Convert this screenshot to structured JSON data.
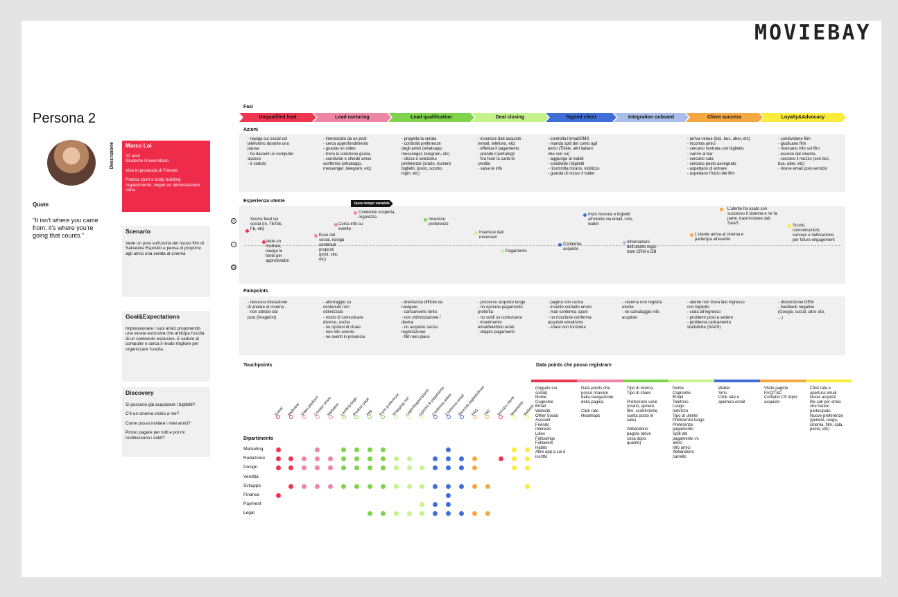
{
  "logo": "MOVIEBAY",
  "persona": {
    "title": "Persona 2",
    "quote_label": "Quote",
    "quote": "“It isn't where you came from; it's where you're going that counts.”",
    "desc_label": "Descrizione",
    "name": "Marco Loi",
    "lines": [
      "22 anni\nStudente Universitario",
      "Vive in provincia di Firenze",
      "Pratica sport e body building regolarmente, segue un alimentazione sana"
    ],
    "scenario_title": "Scenario",
    "scenario": "Vede un post sull'uscita del nuovo film di Salvatore Esposito e pensa di proporre agli amici una serata al cinema",
    "goals_title": "Goal&Expectations",
    "goals": "Impressionare i suoi amici proponendo una serata esclusiva che anticipa l'uscita di un contenuto esclusivo. E seduto al computer e cerca il modo migliore per organizzare l'uscita.",
    "discovery_title": "Discovery",
    "discovery": [
      "Si possono già acquistare i biglietti?",
      "C'è un cinema vicino a me?",
      "Come posso invitare i miei amici?",
      "Posso pagare per tutti e poi mi restituiscono i soldi?"
    ]
  },
  "labels": {
    "fasi": "Fasi",
    "azioni": "Azioni",
    "esperienza": "Esperienza utente",
    "painpoints": "Painpoints",
    "touchpoints": "Touchpoints",
    "dipartimento": "Dipartimento",
    "datapoints": "Data points che posso registrare",
    "lasso": "lasso tempo variabile"
  },
  "phases": [
    {
      "label": "Unqualified lead",
      "color": "#ef3650"
    },
    {
      "label": "Lead nurturing",
      "color": "#ef85a5"
    },
    {
      "label": "Lead qualification",
      "color": "#7ed34a"
    },
    {
      "label": "Deal closing",
      "color": "#c6f28c"
    },
    {
      "label": "Signed client",
      "color": "#3f6ed8"
    },
    {
      "label": "Integration onboard",
      "color": "#a9bde8"
    },
    {
      "label": "Client success",
      "color": "#f5a741"
    },
    {
      "label": "Loyalty&Advocacy",
      "color": "#fbeb3b"
    }
  ],
  "actions": [
    "- naviga sui social col\ntelefonino durante una\npausa\n- ha davanti un computer\nacceso\n- è seduto",
    "- interessato da un post\n- cerca approfondimento\n- guarda un video\n- trova la soluzione giusta\n- condivide e chiede amici\nconferma (whatsapp,\nmessenger, telegram, etc)",
    "- progetta la serata\n- controlla preferenze\ndegli amici (whatsapp,\nmessenger, telegram, etc)\n- clicca e seleziona\npreferenze (orario, numero\nbiglietti, posto, sconto,\nlogin, etc)",
    "- inserisce dati acquisto\n(email, telefono, etc)\n- effettua il pagamento\n- prende il portafogli\n- tira fuori la carta di\ncredito\n- salva le info",
    "- controlla l'email/SMS\n- manda split del conto agli\namici (Tikkie, altri italiani\nche non so)\n- aggiunge al wallet\n- condivide i biglietti\n- ricontrolla l'orario, indirizzo\n- guarda di nuovo il trailer",
    "",
    "- arriva venue (bici, bus, uber, etc)\n- incontra amici\n- cercano l'entrata con biglietto\n- vanno al bar\n- cercano sala\n- cercano posto assegnato\n- aspettano di entrare\n- aspettano l'inizio del film",
    "- condividono film\n- giudicano film\n- ricercano info sul film\n- escono dal cinema\n- cercano il mezzo (con bici,\nbus, uber, etc)\n- riceve email post-servizio"
  ],
  "experience": [
    {
      "text": "Scorre feed sui\nsocial (In, TikTok,\nFb, etc)",
      "color": "#ef3650"
    },
    {
      "text": "Vede un\nrisultato,\nnaviga la\nfonte per\napprofondire",
      "color": "#ef3650"
    },
    {
      "text": "Esce dal\nsocial, naviga\ncontenuti\nproposti\n(post, site,\netc)",
      "color": "#ef85a5"
    },
    {
      "text": "Cerca info su\nevento",
      "color": "#ef85a5"
    },
    {
      "text": "Condivide scoperta,\norganizza",
      "color": "#ef85a5"
    },
    {
      "text": "Inserisce\npreferenze",
      "color": "#7ed34a"
    },
    {
      "text": "Inserisce dati\nnecesseri",
      "color": "#c6f28c"
    },
    {
      "text": "Pagamento",
      "color": "#c6f28c"
    },
    {
      "text": "Invio ricevuta e biglietti\nall'utente via email, sms,\nwallet",
      "color": "#3f6ed8"
    },
    {
      "text": "Conferma\nacquisto",
      "color": "#3f6ed8"
    },
    {
      "text": "Informazioni\ndell'utente regis-\ntrate CRM e DB",
      "color": "#a9bde8"
    },
    {
      "text": "L'utente arriva al cinema e\npartecipa all'evento",
      "color": "#f5a741"
    },
    {
      "text": "L'utente ha usato con\nsuccesso il sistema e ne fa\nparte, trasmissione dati\nSAAS",
      "color": "#f5a741"
    },
    {
      "text": "Sconti,\ncomunicazioni,\nsurveys e riattivazione\nper futuro engagement",
      "color": "#fbeb3b"
    }
  ],
  "painpoints": [
    "- nessuna interazione\ndi andare al cinema\n- non attirato dal\npost (image/txt)",
    "- atterraggio su\ncontenuto non\nottimizzato\n- modo di comunicare\ndiverso, uscita\n- no opzioni di share\n- non info evento\n- no eventi in provincia",
    "- interfaccia difficile da\nnavigare\n- caricamento lento\n- non ottimizzazione /\ndevice\n- no acquisto senza\nregistrazione\n- film non piace",
    "- processo acquisto lungo\n- no opzione pagamento\npreferita\n- no soldi su conto/carta\n- inserimento\nemail/telefono errati\n- doppio pagamento",
    "- pagina non carica\n- inserito contatto errato\n- mail conferma spam\n- no ricezione conferma\nacquisto email/sms\n- share non funziona",
    "- sistema non registra\nutente\n- no salvataggio info\nacquisto",
    "- utente non trova lato ingresso\ncon biglietto\n- coda all'ingresso\n- problemi posti a sedere\n- problema caricamento\nstatistiche (SAAS)",
    "- disiscrizione DEM\n- feedback negativo\n(Google, social, altro sito,\n...)"
  ],
  "touchpoints": [
    {
      "label": "Social",
      "color": "#ef3650"
    },
    {
      "label": "Webview",
      "color": "#ef3650"
    },
    {
      "label": "Video platform",
      "color": "#ef85a5"
    },
    {
      "label": "Contact share",
      "color": "#ef85a5"
    },
    {
      "label": "Websites",
      "color": "#ef85a5"
    },
    {
      "label": "Landing page",
      "color": "#7ed34a"
    },
    {
      "label": "Product page",
      "color": "#7ed34a"
    },
    {
      "label": "App",
      "color": "#7ed34a"
    },
    {
      "label": "Form preferenze",
      "color": "#7ed34a"
    },
    {
      "label": "Shopping cart",
      "color": "#c6f28c"
    },
    {
      "label": "Login/Registrazione",
      "color": "#c6f28c"
    },
    {
      "label": "Opzioni di pagamento",
      "color": "#c6f28c"
    },
    {
      "label": "Conferma online",
      "color": "#3f6ed8"
    },
    {
      "label": "Conferma email",
      "color": "#3f6ed8"
    },
    {
      "label": "Ricevuta biglietto/invio",
      "color": "#3f6ed8"
    },
    {
      "label": "FAQ",
      "color": "#f5a741"
    },
    {
      "label": "T&C",
      "color": "#f5a741"
    },
    {
      "label": "Servizio clienti",
      "color": "#ef3650"
    },
    {
      "label": "Newsletter",
      "color": "#fbeb3b"
    },
    {
      "label": "Website",
      "color": "#fbeb3b"
    }
  ],
  "departments": [
    {
      "name": "Marketing",
      "dots": [
        0,
        3,
        5,
        6,
        7,
        8,
        13,
        18,
        19
      ]
    },
    {
      "name": "Redazione",
      "dots": [
        0,
        1,
        2,
        3,
        4,
        5,
        6,
        7,
        8,
        9,
        10,
        12,
        13,
        14,
        15,
        17,
        18,
        19
      ]
    },
    {
      "name": "Design",
      "dots": [
        0,
        1,
        2,
        3,
        4,
        5,
        6,
        7,
        8,
        9,
        10,
        11,
        12,
        13,
        14,
        15,
        18,
        19
      ]
    },
    {
      "name": "Vendita",
      "dots": []
    },
    {
      "name": "Sviluppo",
      "dots": [
        1,
        2,
        3,
        4,
        5,
        6,
        7,
        8,
        9,
        10,
        11,
        12,
        13,
        14,
        15,
        16,
        19
      ]
    },
    {
      "name": "Finance",
      "dots": [
        0,
        13
      ]
    },
    {
      "name": "Payment",
      "dots": [
        11,
        12,
        13
      ]
    },
    {
      "name": "Legal",
      "dots": [
        7,
        8,
        9,
        10,
        11,
        12,
        13,
        14,
        15,
        16
      ]
    }
  ],
  "datapoints": [
    {
      "color": "#ef3650",
      "text": "(loggato sui\nsocial)\nNome\nCognome\nEmail\nWebsite\nOther Social\nAccount\nFriends\nInterests\nLikes\nFollowings\nFollowers\nHabits\nAltre app a cui è\niscritto"
    },
    {
      "color": "#ef85a5",
      "text": "Data points che\nposso ricavare\ndalla navigazione\ndella pagina\n\nClick rate\nHeatmaps"
    },
    {
      "color": "#7ed34a",
      "text": "Tipo di ricerca\nTipo di share\n\nPreferenze varie\n(orario, genere\nfilm, scontistiche,\nscelta posto in\nsala)\n\nAbbandono\npagina (dove\ncosa dopo\nquanto)"
    },
    {
      "color": "#c6f28c",
      "text": "Nome\nCognome\nEmail\nTelefono\nLuogo\nIndirizzo\nTipo di utente\nPreferenze luogo\nPreferenze\npagamento\nSplit del\npagamento vs\namici\nInfo amici\nAbbandono\ncarrello"
    },
    {
      "color": "#3f6ed8",
      "text": "Wallet\nSms\nClick rate e\napertura email"
    },
    {
      "color": "#f5a741",
      "text": "Visite pagine\nFAQ/T&C\nContatto CS dopo\nacquisto"
    },
    {
      "color": "#fbeb3b",
      "text": "Click rate e\napertura email\nNuovi acquisti\nRe-call per amici\nche hanno\npartecipato\nNuove preferenze\n(genere, luogo,\ncinema, film, sala,\nposto, etc)"
    }
  ]
}
